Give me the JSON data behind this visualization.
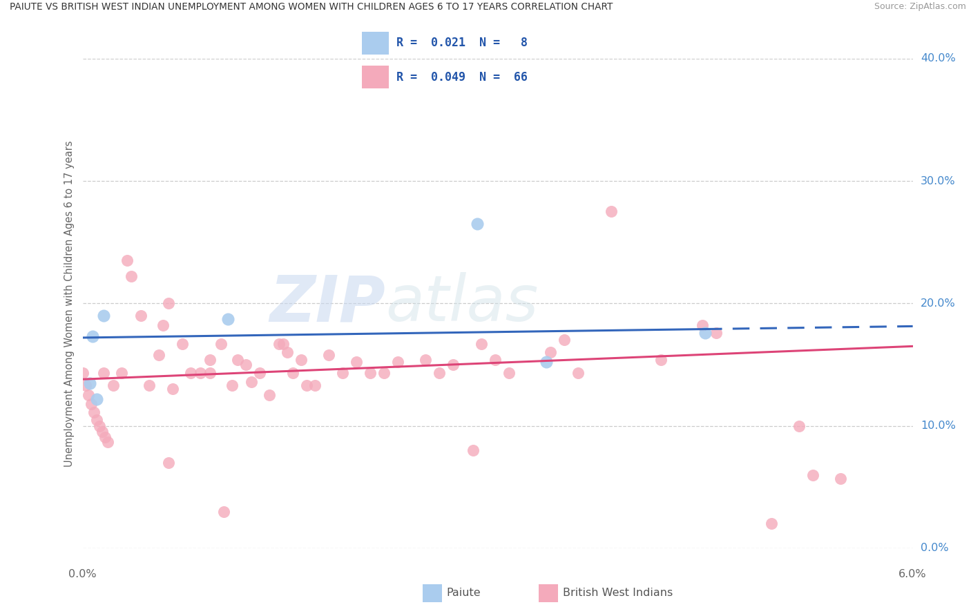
{
  "title": "PAIUTE VS BRITISH WEST INDIAN UNEMPLOYMENT AMONG WOMEN WITH CHILDREN AGES 6 TO 17 YEARS CORRELATION CHART",
  "source": "Source: ZipAtlas.com",
  "ylabel": "Unemployment Among Women with Children Ages 6 to 17 years",
  "xlim": [
    0.0,
    6.0
  ],
  "ylim": [
    0.0,
    40.0
  ],
  "ytick_vals": [
    0.0,
    10.0,
    20.0,
    30.0,
    40.0
  ],
  "legend_r1_text": "R =  0.021  N =   8",
  "legend_r2_text": "R =  0.049  N =  66",
  "watermark_zip": "ZIP",
  "watermark_atlas": "atlas",
  "blue_scatter_color": "#aaccee",
  "pink_scatter_color": "#f4aabb",
  "blue_line_color": "#3366bb",
  "pink_line_color": "#dd4477",
  "grid_color": "#cccccc",
  "paiute_x": [
    0.05,
    0.07,
    0.1,
    0.15,
    1.05,
    2.85,
    3.35,
    4.5
  ],
  "paiute_y": [
    13.5,
    17.3,
    12.2,
    19.0,
    18.7,
    26.5,
    15.2,
    17.6
  ],
  "bwi_x": [
    0.0,
    0.02,
    0.04,
    0.06,
    0.08,
    0.1,
    0.12,
    0.14,
    0.16,
    0.18,
    0.22,
    0.28,
    0.35,
    0.42,
    0.48,
    0.55,
    0.58,
    0.62,
    0.65,
    0.72,
    0.78,
    0.85,
    0.92,
    1.0,
    1.08,
    1.12,
    1.18,
    1.22,
    1.28,
    1.35,
    1.42,
    1.48,
    1.52,
    1.58,
    1.68,
    1.78,
    1.88,
    1.98,
    2.08,
    2.18,
    2.28,
    2.48,
    2.58,
    2.68,
    2.88,
    2.98,
    3.08,
    3.38,
    3.58,
    4.18,
    4.48,
    4.58,
    1.45,
    1.62,
    0.15,
    0.92,
    2.82,
    3.82,
    4.98,
    5.18,
    5.28,
    5.48,
    0.32,
    3.48,
    0.62,
    1.02
  ],
  "bwi_y": [
    14.3,
    13.3,
    12.5,
    11.8,
    11.1,
    10.5,
    10.0,
    9.5,
    9.1,
    8.7,
    13.3,
    14.3,
    22.2,
    19.0,
    13.3,
    15.8,
    18.2,
    20.0,
    13.0,
    16.7,
    14.3,
    14.3,
    15.4,
    16.7,
    13.3,
    15.4,
    15.0,
    13.6,
    14.3,
    12.5,
    16.7,
    16.0,
    14.3,
    15.4,
    13.3,
    15.8,
    14.3,
    15.2,
    14.3,
    14.3,
    15.2,
    15.4,
    14.3,
    15.0,
    16.7,
    15.4,
    14.3,
    16.0,
    14.3,
    15.4,
    18.2,
    17.6,
    16.7,
    13.3,
    14.3,
    14.3,
    8.0,
    27.5,
    2.0,
    10.0,
    6.0,
    5.7,
    23.5,
    17.0,
    7.0,
    3.0
  ],
  "paiute_trend_x0": 0.0,
  "paiute_trend_y0": 17.2,
  "paiute_trend_x1": 4.5,
  "paiute_trend_y1": 17.9,
  "paiute_trend_dash_x0": 4.5,
  "paiute_trend_dash_x1": 6.0,
  "bwi_trend_x0": 0.0,
  "bwi_trend_y0": 13.8,
  "bwi_trend_x1": 6.0,
  "bwi_trend_y1": 16.5
}
